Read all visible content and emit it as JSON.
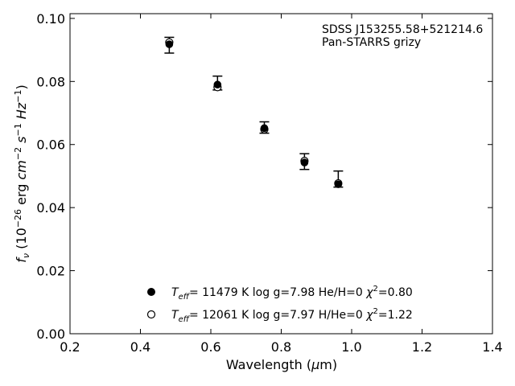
{
  "chart_data": {
    "type": "scatter",
    "title": "",
    "xlabel": "Wavelength (μm)",
    "ylabel": "f_ν (10^-26 erg cm^-2 s^-1 Hz^-1)",
    "xlim": [
      0.2,
      1.4
    ],
    "ylim": [
      0.0,
      0.1015
    ],
    "x_ticks": [
      0.2,
      0.4,
      0.6,
      0.8,
      1.0,
      1.2,
      1.4
    ],
    "y_ticks": [
      0.0,
      0.02,
      0.04,
      0.06,
      0.08,
      0.1
    ],
    "x_tick_labels": [
      "0.2",
      "0.4",
      "0.6",
      "0.8",
      "1.0",
      "1.2",
      "1.4"
    ],
    "y_tick_labels": [
      "0.00",
      "0.02",
      "0.04",
      "0.06",
      "0.08",
      "0.10"
    ],
    "grid": false,
    "annotations": [
      "SDSS J153255.58+521214.6",
      "Pan-STARRS grizy"
    ],
    "observed": {
      "x": [
        0.482,
        0.619,
        0.752,
        0.866,
        0.962
      ],
      "y": [
        0.0915,
        0.0795,
        0.0654,
        0.0546,
        0.0473
      ],
      "yerr_low": [
        0.0025,
        0.0022,
        0.0018,
        0.0025,
        0.0008
      ],
      "yerr_high": [
        0.0025,
        0.0022,
        0.0018,
        0.0025,
        0.0043
      ]
    },
    "series": [
      {
        "name": "Teff= 11479 K  log g=7.98  He/H=0  χ2=0.80",
        "marker": "filled-circle",
        "x": [
          0.482,
          0.619,
          0.752,
          0.866,
          0.962
        ],
        "y": [
          0.0918,
          0.079,
          0.0652,
          0.0543,
          0.0474
        ]
      },
      {
        "name": "Teff= 12061 K  log g=7.97  H/He=0  χ2=1.22",
        "marker": "open-circle",
        "x": [
          0.482,
          0.619,
          0.752,
          0.866,
          0.962
        ],
        "y": [
          0.0924,
          0.0782,
          0.0648,
          0.0548,
          0.0477
        ]
      }
    ],
    "legend": {
      "placement": "lower-center",
      "entries": [
        {
          "marker": "filled-circle",
          "text_parts": {
            "t": "T",
            "sub": "eff",
            "rest": "= 11479 K  log g=7.98  He/H=0  ",
            "chi": "χ",
            "sup": "2",
            "tail": "=0.80"
          }
        },
        {
          "marker": "open-circle",
          "text_parts": {
            "t": "T",
            "sub": "eff",
            "rest": "= 12061 K  log g=7.97  H/He=0  ",
            "chi": "χ",
            "sup": "2",
            "tail": "=1.22"
          }
        }
      ]
    },
    "ylabel_parts": {
      "f": "f",
      "f_sub": "ν",
      "open": " (10",
      "exp1": "−26",
      "erg": " erg ",
      "cm": "cm",
      "exp2": "−2",
      "s": " s",
      "exp3": "−1",
      "hz": " Hz",
      "exp4": "−1",
      "close": ")"
    },
    "xlabel_parts": {
      "main": "Wavelength (",
      "mu": "μ",
      "unit": "m)"
    },
    "colors": {
      "axis": "#000000",
      "marker": "#000000",
      "background": "#ffffff"
    }
  }
}
